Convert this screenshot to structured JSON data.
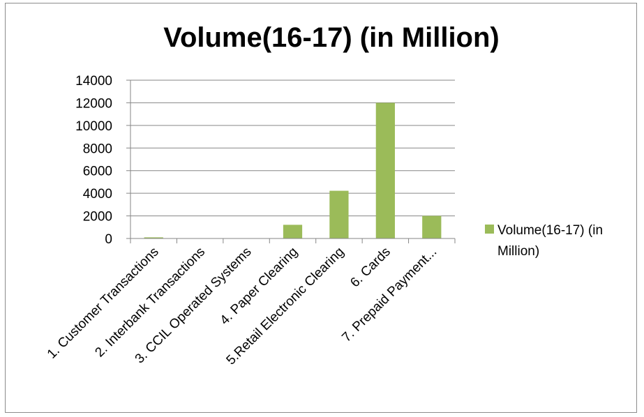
{
  "chart_data": {
    "type": "bar",
    "title": "Volume(16-17) (in Million)",
    "categories": [
      "1. Customer Transactions",
      "2. Interbank Transactions",
      "3. CCIL Operated Systems",
      "4. Paper Clearing",
      "5.Retail Electronic Clearing",
      "6. Cards",
      "7. Prepaid Payment..."
    ],
    "series": [
      {
        "name": "Volume(16-17) (in Million)",
        "values": [
          100,
          5,
          5,
          1210,
          4220,
          12000,
          2000
        ],
        "color": "#9bbb59"
      }
    ],
    "ylim": [
      0,
      14000
    ],
    "yticks": [
      "0",
      "2000",
      "4000",
      "6000",
      "8000",
      "10000",
      "12000",
      "14000"
    ],
    "legend_lines": [
      "Volume(16-17) (in",
      "Million)"
    ],
    "legend_position": "right",
    "grid": true,
    "xlabel": "",
    "ylabel": ""
  }
}
